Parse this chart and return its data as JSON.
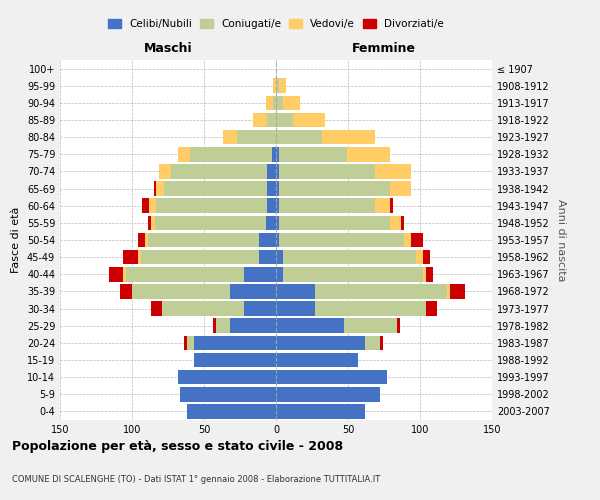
{
  "age_groups": [
    "0-4",
    "5-9",
    "10-14",
    "15-19",
    "20-24",
    "25-29",
    "30-34",
    "35-39",
    "40-44",
    "45-49",
    "50-54",
    "55-59",
    "60-64",
    "65-69",
    "70-74",
    "75-79",
    "80-84",
    "85-89",
    "90-94",
    "95-99",
    "100+"
  ],
  "birth_years": [
    "2003-2007",
    "1998-2002",
    "1993-1997",
    "1988-1992",
    "1983-1987",
    "1978-1982",
    "1973-1977",
    "1968-1972",
    "1963-1967",
    "1958-1962",
    "1953-1957",
    "1948-1952",
    "1943-1947",
    "1938-1942",
    "1933-1937",
    "1928-1932",
    "1923-1927",
    "1918-1922",
    "1913-1917",
    "1908-1912",
    "≤ 1907"
  ],
  "maschi": {
    "celibi": [
      62,
      67,
      68,
      57,
      57,
      32,
      22,
      32,
      22,
      12,
      12,
      7,
      6,
      6,
      6,
      3,
      0,
      0,
      0,
      0,
      0
    ],
    "coniugati": [
      0,
      0,
      0,
      0,
      5,
      10,
      57,
      68,
      82,
      82,
      77,
      77,
      77,
      72,
      67,
      57,
      27,
      6,
      2,
      0,
      0
    ],
    "vedovi": [
      0,
      0,
      0,
      0,
      0,
      0,
      0,
      0,
      2,
      2,
      2,
      3,
      5,
      5,
      8,
      8,
      10,
      10,
      5,
      2,
      0
    ],
    "divorziati": [
      0,
      0,
      0,
      0,
      2,
      2,
      8,
      8,
      10,
      10,
      5,
      2,
      5,
      2,
      0,
      0,
      0,
      0,
      0,
      0,
      0
    ]
  },
  "femmine": {
    "nubili": [
      62,
      72,
      77,
      57,
      62,
      47,
      27,
      27,
      5,
      5,
      2,
      2,
      2,
      2,
      2,
      2,
      0,
      0,
      0,
      0,
      0
    ],
    "coniugate": [
      0,
      0,
      0,
      0,
      10,
      37,
      77,
      92,
      97,
      92,
      87,
      77,
      67,
      77,
      67,
      47,
      32,
      12,
      5,
      2,
      0
    ],
    "vedove": [
      0,
      0,
      0,
      0,
      0,
      0,
      0,
      2,
      2,
      5,
      5,
      8,
      10,
      15,
      25,
      30,
      37,
      22,
      12,
      5,
      0
    ],
    "divorziate": [
      0,
      0,
      0,
      0,
      2,
      2,
      8,
      10,
      5,
      5,
      8,
      2,
      2,
      0,
      0,
      0,
      0,
      0,
      0,
      0,
      0
    ]
  },
  "colors": {
    "celibi": "#4472C4",
    "coniugati": "#BFCD96",
    "vedovi": "#FFCC66",
    "divorziati": "#CC0000"
  },
  "xlim": 150,
  "title": "Popolazione per età, sesso e stato civile - 2008",
  "subtitle": "COMUNE DI SCALENGHE (TO) - Dati ISTAT 1° gennaio 2008 - Elaborazione TUTTITALIA.IT",
  "ylabel_left": "Fasce di età",
  "ylabel_right": "Anni di nascita",
  "xlabel_left": "Maschi",
  "xlabel_right": "Femmine",
  "legend_labels": [
    "Celibi/Nubili",
    "Coniugati/e",
    "Vedovi/e",
    "Divorziati/e"
  ],
  "bg_color": "#f0f0f0",
  "plot_bg_color": "#ffffff"
}
